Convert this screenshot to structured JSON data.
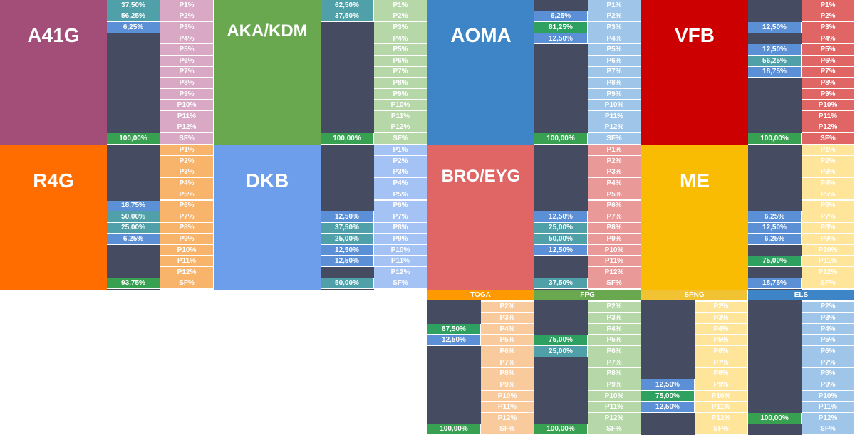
{
  "colors": {
    "dark": "#454c62",
    "val_blue": "#5b8fd6",
    "val_teal": "#4fa0a8",
    "val_green": "#2ea060",
    "sf_green": "#38a051"
  },
  "blocks": [
    {
      "id": "a41g",
      "title": "A41G",
      "title_color": "#a34e79",
      "pcolor": "#d8a8c4",
      "labels": [
        "P1%",
        "P2%",
        "P3%",
        "P4%",
        "P5%",
        "P6%",
        "P7%",
        "P8%",
        "P9%",
        "P10%",
        "P11%",
        "P12%",
        "SF%"
      ],
      "values": [
        {
          "row": 0,
          "text": "37,50%",
          "color": "#4fa0a8"
        },
        {
          "row": 1,
          "text": "56,25%",
          "color": "#4fa0a8"
        },
        {
          "row": 2,
          "text": "6,25%",
          "color": "#5b8fd6"
        },
        {
          "row": 12,
          "text": "100,00%",
          "color": "#38a051"
        }
      ]
    },
    {
      "id": "aka-kdm",
      "title": "AKA/KDM",
      "title_color": "#6aa84f",
      "pcolor": "#b6d7a8",
      "labels": [
        "P1%",
        "P2%",
        "P3%",
        "P4%",
        "P5%",
        "P6%",
        "P7%",
        "P8%",
        "P9%",
        "P10%",
        "P11%",
        "P12%",
        "SF%"
      ],
      "values": [
        {
          "row": 0,
          "text": "62,50%",
          "color": "#4fa0a8"
        },
        {
          "row": 1,
          "text": "37,50%",
          "color": "#4fa0a8"
        },
        {
          "row": 12,
          "text": "100,00%",
          "color": "#38a051"
        }
      ]
    },
    {
      "id": "aoma",
      "title": "AOMA",
      "title_color": "#3d85c6",
      "pcolor": "#9fc5e8",
      "labels": [
        "P1%",
        "P2%",
        "P3%",
        "P4%",
        "P5%",
        "P6%",
        "P7%",
        "P8%",
        "P9%",
        "P10%",
        "P11%",
        "P12%",
        "SF%"
      ],
      "values": [
        {
          "row": 1,
          "text": "6,25%",
          "color": "#5b8fd6"
        },
        {
          "row": 2,
          "text": "81,25%",
          "color": "#2ea060"
        },
        {
          "row": 3,
          "text": "12,50%",
          "color": "#5b8fd6"
        },
        {
          "row": 12,
          "text": "100,00%",
          "color": "#38a051"
        }
      ]
    },
    {
      "id": "vfb",
      "title": "VFB",
      "title_color": "#cc0000",
      "pcolor": "#e06666",
      "labels": [
        "P1%",
        "P2%",
        "P3%",
        "P4%",
        "P5%",
        "P6%",
        "P7%",
        "P8%",
        "P9%",
        "P10%",
        "P11%",
        "P12%",
        "SF%"
      ],
      "values": [
        {
          "row": 2,
          "text": "12,50%",
          "color": "#5b8fd6"
        },
        {
          "row": 4,
          "text": "12,50%",
          "color": "#5b8fd6"
        },
        {
          "row": 5,
          "text": "56,25%",
          "color": "#4fa0a8"
        },
        {
          "row": 6,
          "text": "18,75%",
          "color": "#5b8fd6"
        },
        {
          "row": 12,
          "text": "100,00%",
          "color": "#38a051"
        }
      ]
    },
    {
      "id": "r4g",
      "title": "R4G",
      "title_color": "#ff6d01",
      "pcolor": "#f9b46b",
      "labels": [
        "P1%",
        "P2%",
        "P3%",
        "P4%",
        "P5%",
        "P6%",
        "P7%",
        "P8%",
        "P9%",
        "P10%",
        "P11%",
        "P12%",
        "SF%"
      ],
      "values": [
        {
          "row": 5,
          "text": "18,75%",
          "color": "#5b8fd6"
        },
        {
          "row": 6,
          "text": "50,00%",
          "color": "#4fa0a8"
        },
        {
          "row": 7,
          "text": "25,00%",
          "color": "#4fa0a8"
        },
        {
          "row": 8,
          "text": "6,25%",
          "color": "#5b8fd6"
        },
        {
          "row": 12,
          "text": "93,75%",
          "color": "#38a051"
        }
      ]
    },
    {
      "id": "dkb",
      "title": "DKB",
      "title_color": "#6d9eeb",
      "pcolor": "#a4c2f4",
      "labels": [
        "P1%",
        "P2%",
        "P3%",
        "P4%",
        "P5%",
        "P6%",
        "P7%",
        "P8%",
        "P9%",
        "P10%",
        "P11%",
        "P12%",
        "SF%"
      ],
      "values": [
        {
          "row": 6,
          "text": "12,50%",
          "color": "#5b8fd6"
        },
        {
          "row": 7,
          "text": "37,50%",
          "color": "#4fa0a8"
        },
        {
          "row": 8,
          "text": "25,00%",
          "color": "#4fa0a8"
        },
        {
          "row": 9,
          "text": "12,50%",
          "color": "#5b8fd6"
        },
        {
          "row": 10,
          "text": "12,50%",
          "color": "#5b8fd6"
        },
        {
          "row": 12,
          "text": "50,00%",
          "color": "#4fa0a8"
        }
      ]
    },
    {
      "id": "bro-eyg",
      "title": "BRO/EYG",
      "title_color": "#e06666",
      "pcolor": "#ea9999",
      "labels": [
        "P1%",
        "P2%",
        "P3%",
        "P4%",
        "P5%",
        "P6%",
        "P7%",
        "P8%",
        "P9%",
        "P10%",
        "P11%",
        "P12%",
        "SF%"
      ],
      "values": [
        {
          "row": 6,
          "text": "12,50%",
          "color": "#5b8fd6"
        },
        {
          "row": 7,
          "text": "25,00%",
          "color": "#4fa0a8"
        },
        {
          "row": 8,
          "text": "50,00%",
          "color": "#4fa0a8"
        },
        {
          "row": 9,
          "text": "12,50%",
          "color": "#5b8fd6"
        },
        {
          "row": 12,
          "text": "37,50%",
          "color": "#4fa0a8"
        }
      ]
    },
    {
      "id": "me",
      "title": "ME",
      "title_color": "#f9bc02",
      "pcolor": "#ffe599",
      "labels": [
        "P1%",
        "P2%",
        "P3%",
        "P4%",
        "P5%",
        "P6%",
        "P7%",
        "P8%",
        "P9%",
        "P10%",
        "P11%",
        "P12%",
        "SF%"
      ],
      "values": [
        {
          "row": 6,
          "text": "6,25%",
          "color": "#5b8fd6"
        },
        {
          "row": 7,
          "text": "12,50%",
          "color": "#5b8fd6"
        },
        {
          "row": 8,
          "text": "6,25%",
          "color": "#5b8fd6"
        },
        {
          "row": 10,
          "text": "75,00%",
          "color": "#2ea060"
        },
        {
          "row": 12,
          "text": "18,75%",
          "color": "#5b8fd6"
        }
      ]
    }
  ],
  "small_blocks": [
    {
      "id": "toga",
      "title": "TOGA",
      "title_color": "#ff9900",
      "pcolor": "#f9cb9c",
      "labels": [
        "P2%",
        "P3%",
        "P4%",
        "P5%",
        "P6%",
        "P7%",
        "P8%",
        "P9%",
        "P10%",
        "P11%",
        "P12%",
        "SF%"
      ],
      "values": [
        {
          "row": 2,
          "text": "87,50%",
          "color": "#2ea060"
        },
        {
          "row": 3,
          "text": "12,50%",
          "color": "#5b8fd6"
        },
        {
          "row": 11,
          "text": "100,00%",
          "color": "#38a051"
        }
      ]
    },
    {
      "id": "fpg",
      "title": "FPG",
      "title_color": "#6aa84f",
      "pcolor": "#b6d7a8",
      "labels": [
        "P2%",
        "P3%",
        "P4%",
        "P5%",
        "P6%",
        "P7%",
        "P8%",
        "P9%",
        "P10%",
        "P11%",
        "P12%",
        "SF%"
      ],
      "values": [
        {
          "row": 3,
          "text": "75,00%",
          "color": "#2ea060"
        },
        {
          "row": 4,
          "text": "25,00%",
          "color": "#4fa0a8"
        },
        {
          "row": 11,
          "text": "100,00%",
          "color": "#38a051"
        }
      ]
    },
    {
      "id": "spng",
      "title": "SPNG",
      "title_color": "#f1c232",
      "pcolor": "#ffe599",
      "labels": [
        "P2%",
        "P3%",
        "P4%",
        "P5%",
        "P6%",
        "P7%",
        "P8%",
        "P9%",
        "P10%",
        "P11%",
        "P12%",
        "SF%"
      ],
      "values": [
        {
          "row": 7,
          "text": "12,50%",
          "color": "#5b8fd6"
        },
        {
          "row": 8,
          "text": "75,00%",
          "color": "#2ea060"
        },
        {
          "row": 9,
          "text": "12,50%",
          "color": "#5b8fd6"
        }
      ]
    },
    {
      "id": "els",
      "title": "ELS",
      "title_color": "#3d85c6",
      "pcolor": "#9fc5e8",
      "labels": [
        "P2%",
        "P3%",
        "P4%",
        "P5%",
        "P6%",
        "P7%",
        "P8%",
        "P9%",
        "P10%",
        "P11%",
        "P12%",
        "SF%"
      ],
      "values": [
        {
          "row": 10,
          "text": "100,00%",
          "color": "#38a051"
        }
      ]
    }
  ]
}
